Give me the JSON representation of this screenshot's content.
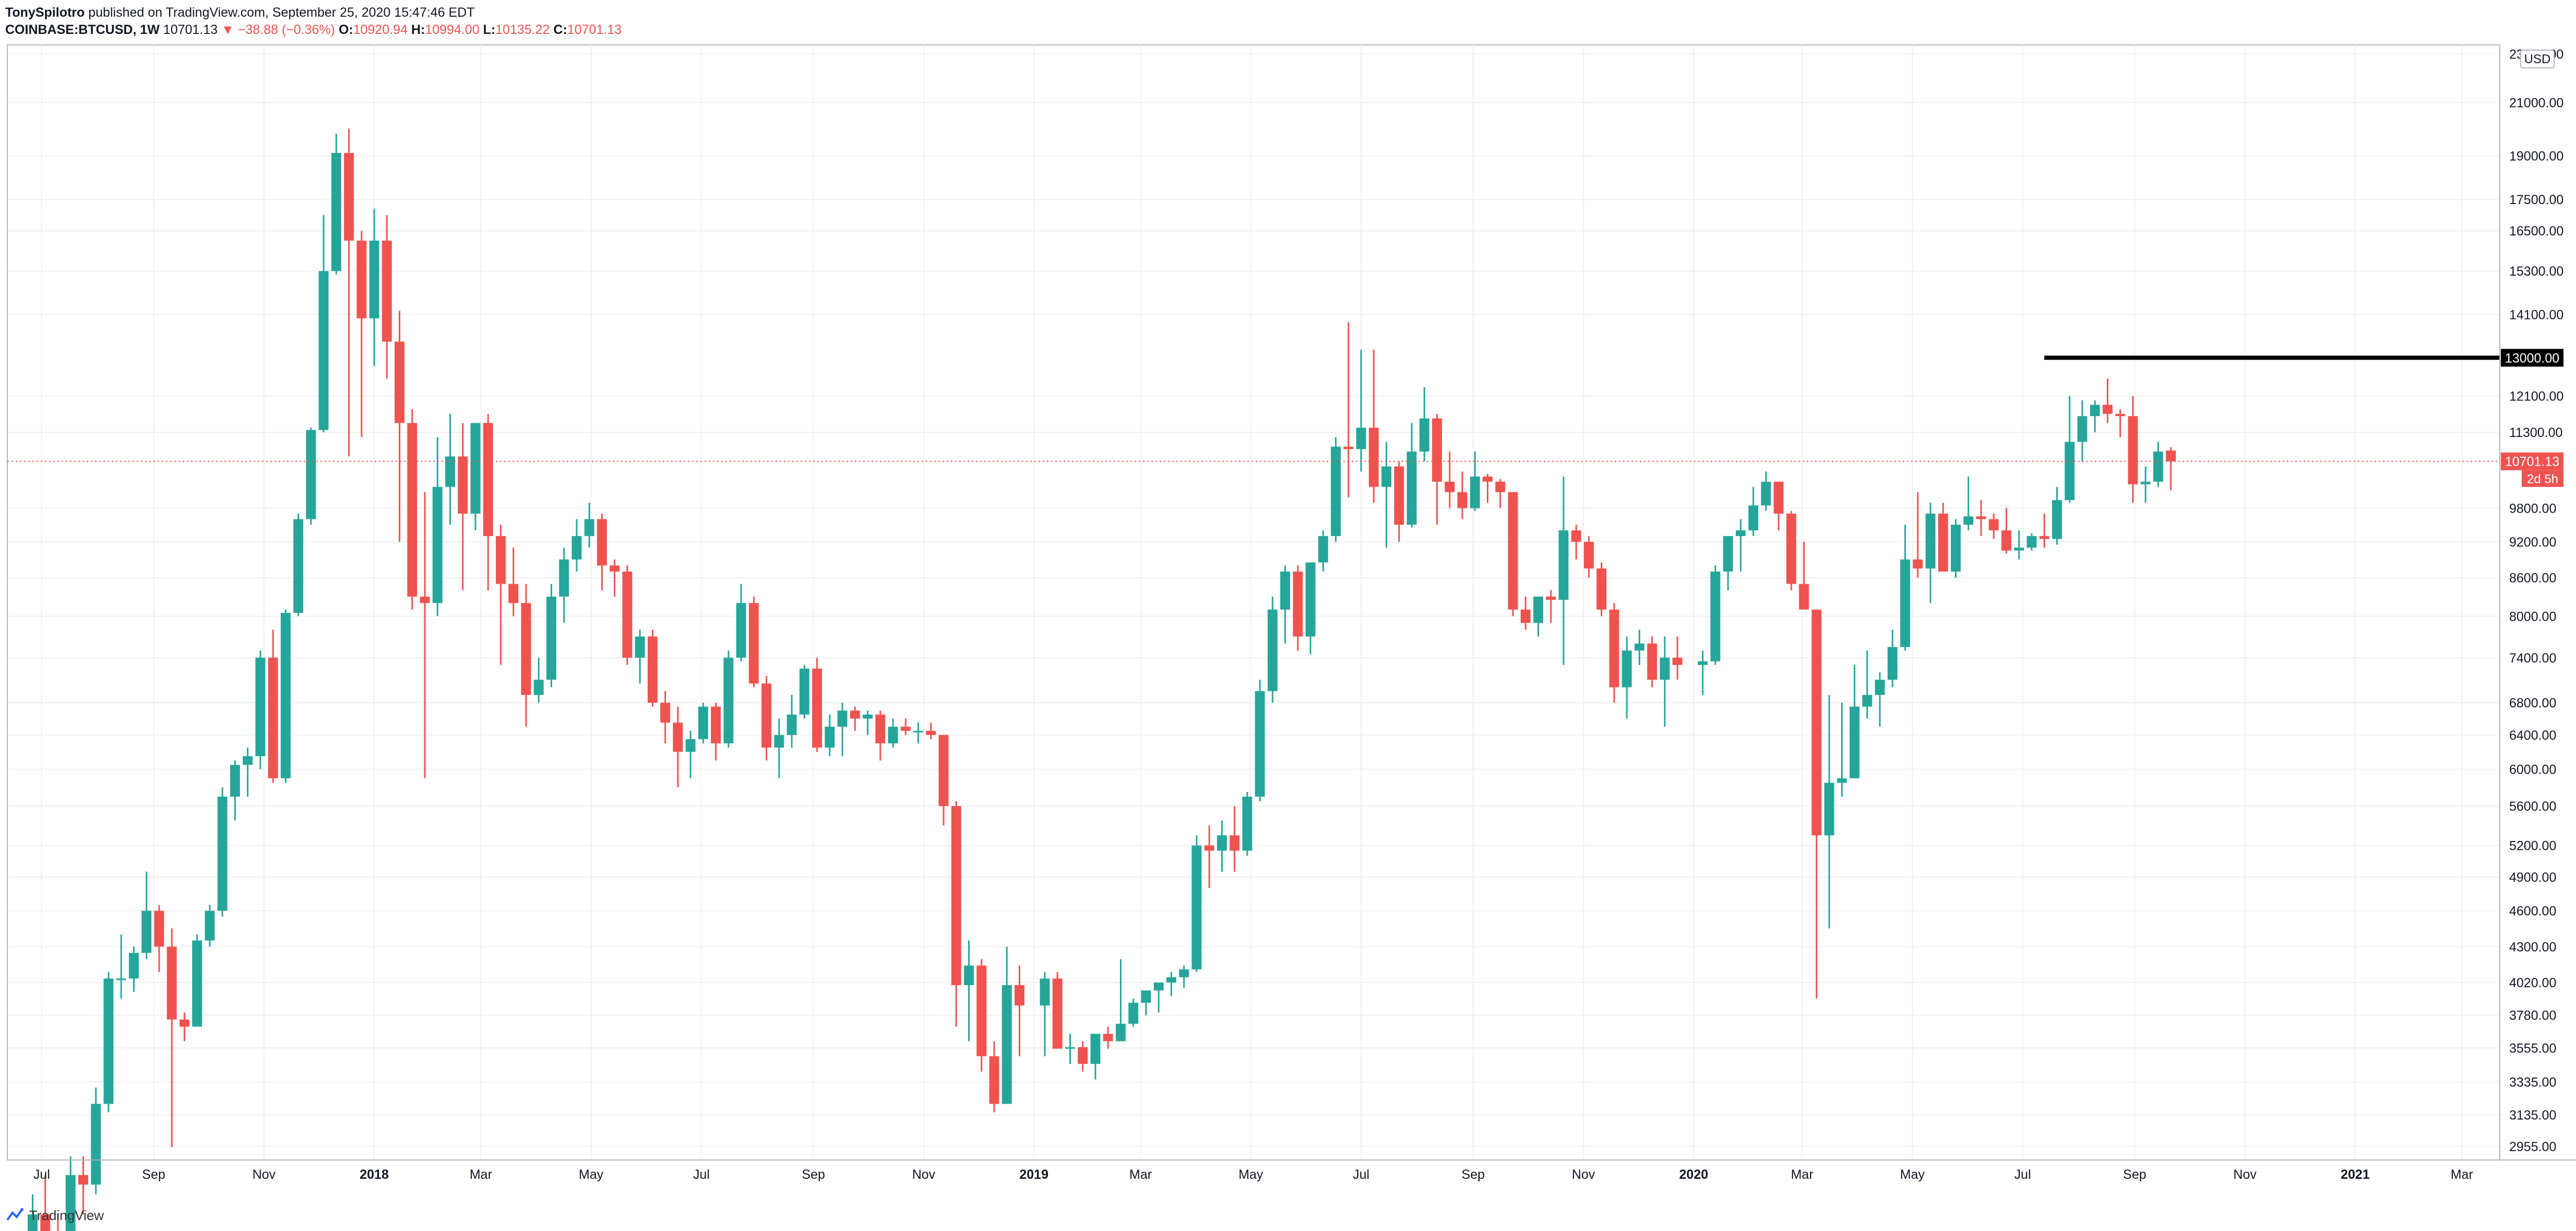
{
  "header": {
    "author": "TonySpilotro",
    "published": "published on TradingView.com, September 25, 2020 15:47:46 EDT",
    "symbol": "COINBASE:BTCUSD, 1W",
    "last": "10701.13",
    "change": "−38.88 (−0.36%)",
    "o_label": "O:",
    "o": "10920.94",
    "h_label": "H:",
    "h": "10994.00",
    "l_label": "L:",
    "l": "10135.22",
    "c_label": "C:",
    "c": "10701.13"
  },
  "footer": {
    "brand": "TradingView",
    "logo_icon": "tradingview-logo-icon"
  },
  "chart_data": {
    "type": "candlestick",
    "interval": "1W",
    "y_scale": "log",
    "currency_label": "USD",
    "grid": true,
    "colors": {
      "up": "#26a69a",
      "down": "#ef5350",
      "grid": "#eef0f3",
      "text": "#131722"
    },
    "x_ticks": [
      "Jul",
      "Sep",
      "Nov",
      "2018",
      "Mar",
      "May",
      "Jul",
      "Sep",
      "Nov",
      "2019",
      "Mar",
      "May",
      "Jul",
      "Sep",
      "Nov",
      "2020",
      "Mar",
      "May",
      "Jul",
      "Sep",
      "Nov",
      "2021",
      "Mar"
    ],
    "y_ticks": [
      23000,
      21000,
      19000,
      17500,
      16500,
      15300,
      14100,
      12100,
      11300,
      9800,
      9200,
      8600,
      8000,
      7400,
      6800,
      6400,
      6000,
      5600,
      5200,
      4900,
      4600,
      4300,
      4020,
      3780,
      3555,
      3335,
      3135,
      2955
    ],
    "y_tick_labels": [
      "23000.00",
      "21000.00",
      "19000.00",
      "17500.00",
      "16500.00",
      "15300.00",
      "14100.00",
      "12100.00",
      "11300.00",
      "9800.00",
      "9200.00",
      "8600.00",
      "8000.00",
      "7400.00",
      "6800.00",
      "6400.00",
      "6000.00",
      "5600.00",
      "5200.00",
      "4900.00",
      "4600.00",
      "4300.00",
      "4020.00",
      "3780.00",
      "3555.00",
      "3335.00",
      "3135.00",
      "2955.00"
    ],
    "horizontal_level": {
      "value": 13000,
      "label": "13000.00",
      "from": "2020-07-13"
    },
    "last_price": {
      "value": 10701.13,
      "label": "10701.13",
      "countdown": "2d 5h"
    },
    "candles": [
      [
        "2017-06-26",
        2500,
        2700,
        2450,
        2600
      ],
      [
        "2017-07-03",
        2600,
        2800,
        2550,
        2500
      ],
      [
        "2017-07-10",
        2500,
        2600,
        2300,
        2450
      ],
      [
        "2017-07-17",
        2450,
        2900,
        2400,
        2800
      ],
      [
        "2017-07-24",
        2800,
        2900,
        2600,
        2750
      ],
      [
        "2017-07-31",
        2750,
        3300,
        2700,
        3200
      ],
      [
        "2017-08-07",
        3200,
        4100,
        3150,
        4050
      ],
      [
        "2017-08-14",
        4050,
        4400,
        3900,
        4050
      ],
      [
        "2017-08-21",
        4050,
        4300,
        3950,
        4250
      ],
      [
        "2017-08-28",
        4250,
        4950,
        4200,
        4600
      ],
      [
        "2017-09-04",
        4600,
        4650,
        4100,
        4300
      ],
      [
        "2017-09-11",
        4300,
        4450,
        2950,
        3750
      ],
      [
        "2017-09-18",
        3750,
        3800,
        3600,
        3700
      ],
      [
        "2017-09-25",
        3700,
        4400,
        3700,
        4350
      ],
      [
        "2017-10-02",
        4350,
        4650,
        4300,
        4600
      ],
      [
        "2017-10-09",
        4600,
        5800,
        4550,
        5700
      ],
      [
        "2017-10-16",
        5700,
        6100,
        5450,
        6050
      ],
      [
        "2017-10-23",
        6050,
        6250,
        5700,
        6150
      ],
      [
        "2017-10-30",
        6150,
        7500,
        6000,
        7400
      ],
      [
        "2017-11-06",
        7400,
        7800,
        5850,
        5900
      ],
      [
        "2017-11-13",
        5900,
        8100,
        5850,
        8050
      ],
      [
        "2017-11-20",
        8050,
        9700,
        8000,
        9600
      ],
      [
        "2017-11-27",
        9600,
        11400,
        9500,
        11350
      ],
      [
        "2017-12-04",
        11350,
        17000,
        11300,
        15300
      ],
      [
        "2017-12-11",
        15300,
        19800,
        15200,
        19100
      ],
      [
        "2017-12-18",
        19100,
        20000,
        10800,
        16200
      ],
      [
        "2017-12-25",
        16200,
        16500,
        11200,
        14000
      ],
      [
        "2018-01-01",
        14000,
        17200,
        12800,
        16200
      ],
      [
        "2018-01-08",
        16200,
        17000,
        12500,
        13400
      ],
      [
        "2018-01-15",
        13400,
        14200,
        9200,
        11500
      ],
      [
        "2018-01-22",
        11500,
        11800,
        8100,
        8300
      ],
      [
        "2018-01-29",
        8300,
        10100,
        5900,
        8200
      ],
      [
        "2018-02-05",
        8200,
        11200,
        8000,
        10200
      ],
      [
        "2018-02-12",
        10200,
        11700,
        9500,
        10800
      ],
      [
        "2018-02-19",
        10800,
        11500,
        8400,
        9700
      ],
      [
        "2018-02-26",
        9700,
        11500,
        9400,
        11500
      ],
      [
        "2018-03-05",
        11500,
        11700,
        8400,
        9300
      ],
      [
        "2018-03-12",
        9300,
        9500,
        7300,
        8500
      ],
      [
        "2018-03-19",
        8500,
        9100,
        8000,
        8200
      ],
      [
        "2018-03-26",
        8200,
        8500,
        6500,
        6900
      ],
      [
        "2018-04-02",
        6900,
        7400,
        6800,
        7100
      ],
      [
        "2018-04-09",
        7100,
        8500,
        7000,
        8300
      ],
      [
        "2018-04-16",
        8300,
        9100,
        7900,
        8900
      ],
      [
        "2018-04-23",
        8900,
        9600,
        8700,
        9300
      ],
      [
        "2018-04-30",
        9300,
        9900,
        9100,
        9600
      ],
      [
        "2018-05-07",
        9600,
        9700,
        8400,
        8800
      ],
      [
        "2018-05-14",
        8800,
        8900,
        8300,
        8700
      ],
      [
        "2018-05-21",
        8700,
        8800,
        7300,
        7400
      ],
      [
        "2018-05-28",
        7400,
        7800,
        7050,
        7700
      ],
      [
        "2018-06-04",
        7700,
        7800,
        6750,
        6800
      ],
      [
        "2018-06-11",
        6800,
        6950,
        6300,
        6550
      ],
      [
        "2018-06-18",
        6550,
        6750,
        5800,
        6200
      ],
      [
        "2018-06-25",
        6200,
        6450,
        5900,
        6350
      ],
      [
        "2018-07-02",
        6350,
        6800,
        6300,
        6750
      ],
      [
        "2018-07-09",
        6750,
        6800,
        6100,
        6300
      ],
      [
        "2018-07-16",
        6300,
        7500,
        6250,
        7400
      ],
      [
        "2018-07-23",
        7400,
        8500,
        7350,
        8200
      ],
      [
        "2018-07-30",
        8200,
        8300,
        7000,
        7050
      ],
      [
        "2018-08-06",
        7050,
        7150,
        6100,
        6250
      ],
      [
        "2018-08-13",
        6250,
        6600,
        5900,
        6400
      ],
      [
        "2018-08-20",
        6400,
        6900,
        6250,
        6650
      ],
      [
        "2018-08-27",
        6650,
        7300,
        6600,
        7250
      ],
      [
        "2018-09-03",
        7250,
        7400,
        6200,
        6250
      ],
      [
        "2018-09-10",
        6250,
        6650,
        6150,
        6500
      ],
      [
        "2018-09-17",
        6500,
        6800,
        6150,
        6700
      ],
      [
        "2018-09-24",
        6700,
        6750,
        6450,
        6600
      ],
      [
        "2018-10-01",
        6600,
        6700,
        6400,
        6650
      ],
      [
        "2018-10-08",
        6650,
        6700,
        6100,
        6300
      ],
      [
        "2018-10-15",
        6300,
        6600,
        6250,
        6500
      ],
      [
        "2018-10-22",
        6500,
        6600,
        6400,
        6450
      ],
      [
        "2018-10-29",
        6450,
        6550,
        6300,
        6450
      ],
      [
        "2018-11-05",
        6450,
        6550,
        6350,
        6400
      ],
      [
        "2018-11-12",
        6400,
        6400,
        5400,
        5600
      ],
      [
        "2018-11-19",
        5600,
        5650,
        3700,
        4000
      ],
      [
        "2018-11-26",
        4000,
        4350,
        3600,
        4150
      ],
      [
        "2018-12-03",
        4150,
        4200,
        3400,
        3500
      ],
      [
        "2018-12-10",
        3500,
        3600,
        3150,
        3200
      ],
      [
        "2018-12-17",
        3200,
        4300,
        3200,
        4000
      ],
      [
        "2018-12-24",
        4000,
        4150,
        3500,
        3850
      ],
      [
        "2019-01-07",
        3850,
        4100,
        3500,
        4050
      ],
      [
        "2019-01-14",
        4050,
        4100,
        3550,
        3550
      ],
      [
        "2019-01-21",
        3550,
        3650,
        3450,
        3560
      ],
      [
        "2019-01-28",
        3560,
        3600,
        3400,
        3450
      ],
      [
        "2019-02-04",
        3450,
        3650,
        3350,
        3650
      ],
      [
        "2019-02-11",
        3650,
        3700,
        3550,
        3600
      ],
      [
        "2019-02-18",
        3600,
        4200,
        3600,
        3720
      ],
      [
        "2019-02-25",
        3720,
        3900,
        3700,
        3870
      ],
      [
        "2019-03-04",
        3870,
        3950,
        3780,
        3960
      ],
      [
        "2019-03-11",
        3960,
        4000,
        3800,
        4020
      ],
      [
        "2019-03-18",
        4020,
        4100,
        3920,
        4060
      ],
      [
        "2019-03-25",
        4060,
        4150,
        3980,
        4120
      ],
      [
        "2019-04-01",
        4120,
        5300,
        4100,
        5200
      ],
      [
        "2019-04-08",
        5200,
        5400,
        4800,
        5150
      ],
      [
        "2019-04-15",
        5150,
        5450,
        4950,
        5300
      ],
      [
        "2019-04-22",
        5300,
        5600,
        4950,
        5150
      ],
      [
        "2019-04-29",
        5150,
        5750,
        5100,
        5700
      ],
      [
        "2019-05-06",
        5700,
        7100,
        5650,
        6950
      ],
      [
        "2019-05-13",
        6950,
        8300,
        6800,
        8100
      ],
      [
        "2019-05-20",
        8100,
        8800,
        7600,
        8700
      ],
      [
        "2019-05-27",
        8700,
        8800,
        7500,
        7700
      ],
      [
        "2019-06-03",
        7700,
        8750,
        7450,
        8850
      ],
      [
        "2019-06-10",
        8850,
        9400,
        8700,
        9300
      ],
      [
        "2019-06-17",
        9300,
        11200,
        9200,
        11000
      ],
      [
        "2019-06-24",
        11000,
        13900,
        10000,
        10950
      ],
      [
        "2019-07-01",
        10950,
        13200,
        10500,
        11400
      ],
      [
        "2019-07-08",
        11400,
        13200,
        9900,
        10200
      ],
      [
        "2019-07-15",
        10200,
        11100,
        9100,
        10600
      ],
      [
        "2019-07-22",
        10600,
        10700,
        9200,
        9500
      ],
      [
        "2019-07-29",
        9500,
        11500,
        9450,
        10900
      ],
      [
        "2019-08-05",
        10900,
        12300,
        10700,
        11600
      ],
      [
        "2019-08-12",
        11600,
        11700,
        9500,
        10300
      ],
      [
        "2019-08-19",
        10300,
        10900,
        9800,
        10100
      ],
      [
        "2019-08-26",
        10100,
        10500,
        9600,
        9800
      ],
      [
        "2019-09-02",
        9800,
        10900,
        9750,
        10400
      ],
      [
        "2019-09-09",
        10400,
        10450,
        9900,
        10300
      ],
      [
        "2019-09-16",
        10300,
        10350,
        9800,
        10100
      ],
      [
        "2019-09-23",
        10100,
        10100,
        8000,
        8100
      ],
      [
        "2019-09-30",
        8100,
        8300,
        7800,
        7900
      ],
      [
        "2019-10-07",
        7900,
        8200,
        7700,
        8300
      ],
      [
        "2019-10-14",
        8300,
        8400,
        7900,
        8250
      ],
      [
        "2019-10-21",
        8250,
        10400,
        7300,
        9400
      ],
      [
        "2019-10-28",
        9400,
        9500,
        8900,
        9200
      ],
      [
        "2019-11-04",
        9200,
        9300,
        8600,
        8750
      ],
      [
        "2019-11-11",
        8750,
        8850,
        8000,
        8100
      ],
      [
        "2019-11-18",
        8100,
        8200,
        6800,
        7000
      ],
      [
        "2019-11-25",
        7000,
        7700,
        6600,
        7500
      ],
      [
        "2019-12-02",
        7500,
        7800,
        7300,
        7600
      ],
      [
        "2019-12-09",
        7600,
        7700,
        7000,
        7100
      ],
      [
        "2019-12-16",
        7100,
        7700,
        6500,
        7400
      ],
      [
        "2019-12-23",
        7400,
        7700,
        7100,
        7300
      ],
      [
        "2020-01-06",
        7300,
        7500,
        6900,
        7350
      ],
      [
        "2020-01-13",
        7350,
        8800,
        7300,
        8700
      ],
      [
        "2020-01-20",
        8700,
        9200,
        8400,
        9300
      ],
      [
        "2020-01-27",
        9300,
        9600,
        8700,
        9400
      ],
      [
        "2020-02-03",
        9400,
        10200,
        9300,
        9850
      ],
      [
        "2020-02-10",
        9850,
        10500,
        9750,
        10300
      ],
      [
        "2020-02-17",
        10300,
        10300,
        9400,
        9700
      ],
      [
        "2020-02-24",
        9700,
        9750,
        8400,
        8500
      ],
      [
        "2020-03-02",
        8500,
        9200,
        8200,
        8100
      ],
      [
        "2020-03-09",
        8100,
        8100,
        3900,
        5300
      ],
      [
        "2020-03-16",
        5300,
        6900,
        4450,
        5850
      ],
      [
        "2020-03-23",
        5850,
        6800,
        5700,
        5900
      ],
      [
        "2020-03-30",
        5900,
        7300,
        5900,
        6750
      ],
      [
        "2020-04-06",
        6750,
        7500,
        6600,
        6900
      ],
      [
        "2020-04-13",
        6900,
        7200,
        6500,
        7100
      ],
      [
        "2020-04-20",
        7100,
        7800,
        7000,
        7550
      ],
      [
        "2020-04-27",
        7550,
        9500,
        7500,
        8900
      ],
      [
        "2020-05-04",
        8900,
        10100,
        8600,
        8750
      ],
      [
        "2020-05-11",
        8750,
        9900,
        8200,
        9700
      ],
      [
        "2020-05-18",
        9700,
        9900,
        8800,
        8700
      ],
      [
        "2020-05-25",
        8700,
        9600,
        8600,
        9500
      ],
      [
        "2020-06-01",
        9500,
        10400,
        9400,
        9650
      ],
      [
        "2020-06-08",
        9650,
        9950,
        9300,
        9600
      ],
      [
        "2020-06-15",
        9600,
        9700,
        9250,
        9400
      ],
      [
        "2020-06-22",
        9400,
        9800,
        9000,
        9050
      ],
      [
        "2020-06-29",
        9050,
        9400,
        8900,
        9100
      ],
      [
        "2020-07-06",
        9100,
        9350,
        9050,
        9300
      ],
      [
        "2020-07-13",
        9300,
        9700,
        9100,
        9250
      ],
      [
        "2020-07-20",
        9250,
        10200,
        9150,
        9950
      ],
      [
        "2020-07-27",
        9950,
        12100,
        9900,
        11100
      ],
      [
        "2020-08-03",
        11100,
        12000,
        10700,
        11650
      ],
      [
        "2020-08-10",
        11650,
        12000,
        11300,
        11900
      ],
      [
        "2020-08-17",
        11900,
        12500,
        11500,
        11700
      ],
      [
        "2020-08-24",
        11700,
        11800,
        11200,
        11650
      ],
      [
        "2020-08-31",
        11650,
        12100,
        9900,
        10250
      ],
      [
        "2020-09-07",
        10250,
        10600,
        9900,
        10300
      ],
      [
        "2020-09-14",
        10300,
        11100,
        10200,
        10900
      ],
      [
        "2020-09-21",
        10920.94,
        10994,
        10135.22,
        10701.13
      ]
    ]
  }
}
